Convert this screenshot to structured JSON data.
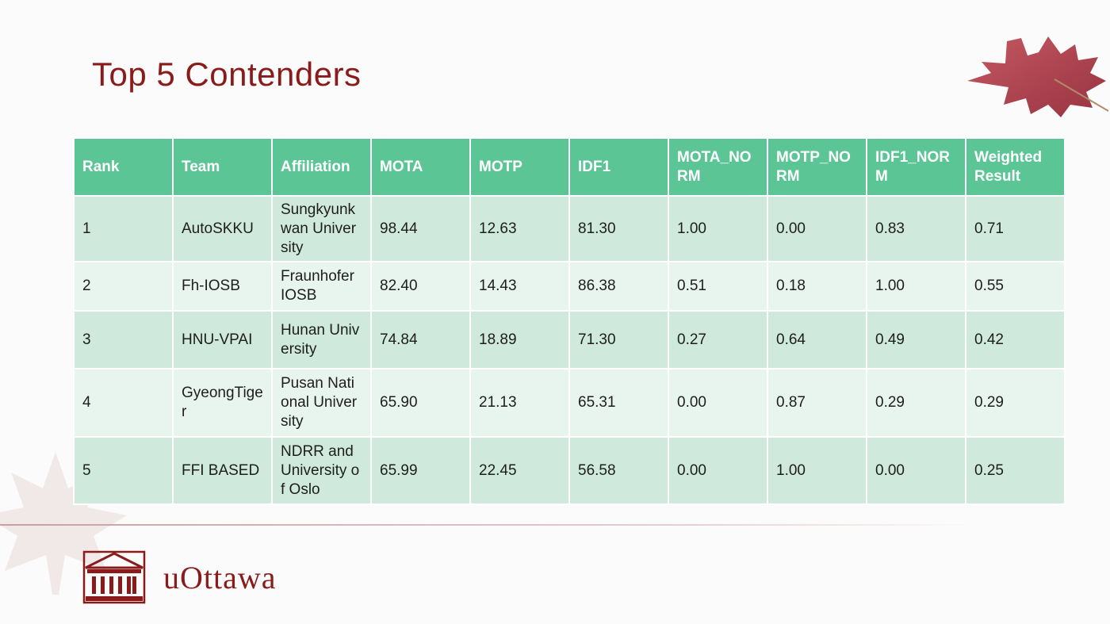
{
  "slide": {
    "title": "Top 5 Contenders"
  },
  "table": {
    "headers": [
      "Rank",
      "Team",
      "Affiliation",
      "MOTA",
      "MOTP",
      "IDF1",
      "MOTA_NORM",
      "MOTP_NORM",
      "IDF1_NORM",
      "Weighted Result"
    ],
    "rows": [
      [
        "1",
        "AutoSKKU",
        "Sungkyunkwan University",
        "98.44",
        "12.63",
        "81.30",
        "1.00",
        "0.00",
        "0.83",
        "0.71"
      ],
      [
        "2",
        "Fh-IOSB",
        "Fraunhofer IOSB",
        "82.40",
        "14.43",
        "86.38",
        "0.51",
        "0.18",
        "1.00",
        "0.55"
      ],
      [
        "3",
        "HNU-VPAI",
        "Hunan University",
        "74.84",
        "18.89",
        "71.30",
        "0.27",
        "0.64",
        "0.49",
        "0.42"
      ],
      [
        "4",
        "GyeongTiger",
        "Pusan National University",
        "65.90",
        "21.13",
        "65.31",
        "0.00",
        "0.87",
        "0.29",
        "0.29"
      ],
      [
        "5",
        "FFI BASED",
        "NDRR and University of Oslo",
        "65.99",
        "22.45",
        "56.58",
        "0.00",
        "1.00",
        "0.00",
        "0.25"
      ]
    ]
  },
  "footer": {
    "logo_text": "uOttawa"
  },
  "colors": {
    "title": "#8b1a1a",
    "header_bg": "#5cc595",
    "row_odd": "#cfe9dc",
    "row_even": "#e8f4ee",
    "brand": "#8b1a1a"
  },
  "icons": [
    "maple-leaf-icon",
    "uottawa-building-icon"
  ]
}
